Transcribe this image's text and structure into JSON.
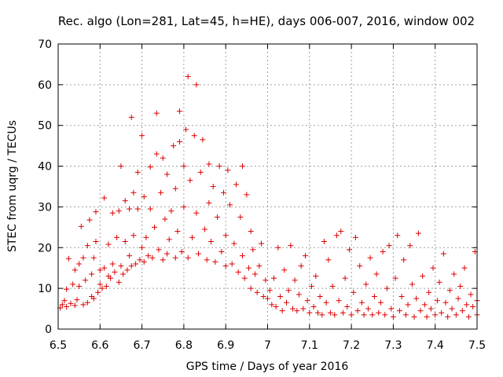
{
  "chart_data": {
    "type": "scatter",
    "title": "Rec. algo (Lon=281, Lat=45, h=HE), days 006-007, 2016, window 002",
    "xlabel": "GPS time / Days of year 2016",
    "ylabel": "STEC from uqrg / TECUs",
    "xlim": [
      6.5,
      7.5
    ],
    "ylim": [
      0,
      70
    ],
    "xticks": [
      6.5,
      6.6,
      6.7,
      6.8,
      6.9,
      7.0,
      7.1,
      7.2,
      7.3,
      7.4,
      7.5
    ],
    "xtick_labels": [
      "6.5",
      "6.6",
      "6.7",
      "6.8",
      "6.9",
      "7",
      "7.1",
      "7.2",
      "7.3",
      "7.4",
      "7.5"
    ],
    "yticks": [
      0,
      10,
      20,
      30,
      40,
      50,
      60,
      70
    ],
    "ytick_labels": [
      "0",
      "10",
      "20",
      "30",
      "40",
      "50",
      "60",
      "70"
    ],
    "grid": true,
    "marker": "+",
    "color": "#dd0000",
    "series": [
      {
        "name": "STEC",
        "points": [
          [
            6.505,
            5.2
          ],
          [
            6.51,
            6.0
          ],
          [
            6.515,
            7.0
          ],
          [
            6.52,
            5.5
          ],
          [
            6.52,
            9.8
          ],
          [
            6.525,
            17.3
          ],
          [
            6.53,
            6.3
          ],
          [
            6.535,
            11.0
          ],
          [
            6.54,
            5.8
          ],
          [
            6.54,
            14.5
          ],
          [
            6.545,
            7.2
          ],
          [
            6.55,
            10.5
          ],
          [
            6.55,
            16.0
          ],
          [
            6.555,
            25.2
          ],
          [
            6.56,
            6.0
          ],
          [
            6.56,
            17.5
          ],
          [
            6.565,
            12.0
          ],
          [
            6.57,
            6.5
          ],
          [
            6.57,
            20.5
          ],
          [
            6.575,
            26.8
          ],
          [
            6.58,
            8.0
          ],
          [
            6.58,
            13.5
          ],
          [
            6.585,
            7.5
          ],
          [
            6.585,
            17.5
          ],
          [
            6.59,
            21.5
          ],
          [
            6.59,
            28.8
          ],
          [
            6.595,
            9.0
          ],
          [
            6.6,
            11.0
          ],
          [
            6.6,
            14.5
          ],
          [
            6.605,
            10.0
          ],
          [
            6.61,
            15.0
          ],
          [
            6.61,
            32.2
          ],
          [
            6.615,
            10.5
          ],
          [
            6.62,
            13.0
          ],
          [
            6.62,
            20.8
          ],
          [
            6.625,
            12.5
          ],
          [
            6.63,
            16.0
          ],
          [
            6.63,
            28.5
          ],
          [
            6.635,
            14.0
          ],
          [
            6.64,
            22.5
          ],
          [
            6.645,
            11.5
          ],
          [
            6.645,
            29.0
          ],
          [
            6.65,
            15.5
          ],
          [
            6.65,
            40.0
          ],
          [
            6.655,
            13.5
          ],
          [
            6.66,
            21.5
          ],
          [
            6.66,
            31.5
          ],
          [
            6.665,
            14.5
          ],
          [
            6.67,
            18.0
          ],
          [
            6.67,
            29.5
          ],
          [
            6.675,
            52.0
          ],
          [
            6.675,
            15.5
          ],
          [
            6.68,
            23.0
          ],
          [
            6.68,
            33.5
          ],
          [
            6.685,
            16.0
          ],
          [
            6.69,
            29.5
          ],
          [
            6.69,
            38.5
          ],
          [
            6.695,
            17.0
          ],
          [
            6.7,
            20.0
          ],
          [
            6.7,
            47.5
          ],
          [
            6.705,
            16.5
          ],
          [
            6.705,
            32.5
          ],
          [
            6.71,
            22.5
          ],
          [
            6.715,
            18.0
          ],
          [
            6.72,
            29.5
          ],
          [
            6.72,
            39.8
          ],
          [
            6.725,
            17.5
          ],
          [
            6.73,
            25.0
          ],
          [
            6.735,
            53.0
          ],
          [
            6.735,
            43.0
          ],
          [
            6.74,
            19.5
          ],
          [
            6.745,
            33.5
          ],
          [
            6.75,
            17.0
          ],
          [
            6.75,
            42.0
          ],
          [
            6.755,
            27.0
          ],
          [
            6.76,
            18.5
          ],
          [
            6.76,
            38.0
          ],
          [
            6.765,
            22.0
          ],
          [
            6.77,
            29.0
          ],
          [
            6.775,
            45.0
          ],
          [
            6.78,
            17.5
          ],
          [
            6.78,
            34.5
          ],
          [
            6.785,
            24.0
          ],
          [
            6.79,
            46.0
          ],
          [
            6.79,
            53.5
          ],
          [
            6.795,
            19.0
          ],
          [
            6.8,
            40.0
          ],
          [
            6.8,
            30.0
          ],
          [
            6.805,
            49.0
          ],
          [
            6.81,
            62.0
          ],
          [
            6.81,
            17.5
          ],
          [
            6.815,
            36.5
          ],
          [
            6.82,
            22.5
          ],
          [
            6.825,
            47.5
          ],
          [
            6.83,
            28.5
          ],
          [
            6.83,
            60.0
          ],
          [
            6.835,
            18.5
          ],
          [
            6.84,
            38.5
          ],
          [
            6.845,
            46.5
          ],
          [
            6.85,
            24.5
          ],
          [
            6.855,
            17.0
          ],
          [
            6.86,
            31.0
          ],
          [
            6.86,
            40.5
          ],
          [
            6.865,
            21.5
          ],
          [
            6.87,
            35.0
          ],
          [
            6.875,
            16.5
          ],
          [
            6.88,
            27.5
          ],
          [
            6.885,
            40.0
          ],
          [
            6.89,
            19.0
          ],
          [
            6.895,
            33.5
          ],
          [
            6.9,
            15.5
          ],
          [
            6.9,
            23.0
          ],
          [
            6.905,
            39.0
          ],
          [
            6.91,
            30.5
          ],
          [
            6.915,
            16.0
          ],
          [
            6.92,
            21.0
          ],
          [
            6.925,
            35.5
          ],
          [
            6.93,
            14.0
          ],
          [
            6.935,
            27.5
          ],
          [
            6.94,
            40.0
          ],
          [
            6.94,
            18.0
          ],
          [
            6.945,
            12.5
          ],
          [
            6.95,
            33.0
          ],
          [
            6.955,
            15.0
          ],
          [
            6.96,
            24.0
          ],
          [
            6.96,
            10.0
          ],
          [
            6.965,
            19.5
          ],
          [
            6.97,
            13.5
          ],
          [
            6.975,
            9.0
          ],
          [
            6.98,
            15.5
          ],
          [
            6.985,
            21.0
          ],
          [
            6.99,
            8.0
          ],
          [
            6.995,
            12.0
          ],
          [
            7.0,
            7.5
          ],
          [
            7.005,
            9.5
          ],
          [
            7.01,
            6.0
          ],
          [
            7.015,
            12.5
          ],
          [
            7.02,
            5.5
          ],
          [
            7.025,
            20.0
          ],
          [
            7.03,
            8.0
          ],
          [
            7.035,
            4.5
          ],
          [
            7.04,
            14.5
          ],
          [
            7.045,
            6.5
          ],
          [
            7.05,
            9.5
          ],
          [
            7.055,
            20.5
          ],
          [
            7.06,
            5.0
          ],
          [
            7.065,
            12.0
          ],
          [
            7.07,
            4.5
          ],
          [
            7.075,
            8.5
          ],
          [
            7.08,
            15.5
          ],
          [
            7.085,
            5.0
          ],
          [
            7.09,
            18.0
          ],
          [
            7.095,
            7.0
          ],
          [
            7.1,
            4.0
          ],
          [
            7.105,
            10.5
          ],
          [
            7.11,
            5.5
          ],
          [
            7.115,
            13.0
          ],
          [
            7.12,
            4.0
          ],
          [
            7.125,
            8.0
          ],
          [
            7.13,
            3.5
          ],
          [
            7.135,
            21.5
          ],
          [
            7.14,
            6.5
          ],
          [
            7.145,
            17.0
          ],
          [
            7.15,
            4.0
          ],
          [
            7.155,
            10.5
          ],
          [
            7.16,
            3.5
          ],
          [
            7.165,
            23.0
          ],
          [
            7.17,
            7.0
          ],
          [
            7.175,
            24.0
          ],
          [
            7.18,
            4.0
          ],
          [
            7.185,
            12.5
          ],
          [
            7.19,
            5.5
          ],
          [
            7.195,
            19.5
          ],
          [
            7.2,
            3.5
          ],
          [
            7.205,
            9.0
          ],
          [
            7.21,
            22.5
          ],
          [
            7.215,
            4.5
          ],
          [
            7.22,
            15.5
          ],
          [
            7.225,
            6.5
          ],
          [
            7.23,
            3.5
          ],
          [
            7.235,
            11.0
          ],
          [
            7.24,
            5.0
          ],
          [
            7.245,
            17.5
          ],
          [
            7.25,
            3.5
          ],
          [
            7.255,
            8.0
          ],
          [
            7.26,
            13.5
          ],
          [
            7.265,
            4.0
          ],
          [
            7.27,
            6.5
          ],
          [
            7.275,
            19.0
          ],
          [
            7.28,
            3.5
          ],
          [
            7.285,
            10.0
          ],
          [
            7.29,
            20.5
          ],
          [
            7.295,
            5.0
          ],
          [
            7.3,
            3.0
          ],
          [
            7.305,
            12.5
          ],
          [
            7.31,
            23.0
          ],
          [
            7.315,
            4.5
          ],
          [
            7.32,
            8.0
          ],
          [
            7.325,
            17.0
          ],
          [
            7.33,
            3.5
          ],
          [
            7.335,
            6.0
          ],
          [
            7.34,
            20.5
          ],
          [
            7.345,
            11.0
          ],
          [
            7.35,
            3.0
          ],
          [
            7.355,
            7.5
          ],
          [
            7.36,
            23.5
          ],
          [
            7.365,
            4.5
          ],
          [
            7.37,
            13.0
          ],
          [
            7.375,
            6.0
          ],
          [
            7.38,
            3.0
          ],
          [
            7.385,
            9.0
          ],
          [
            7.39,
            5.0
          ],
          [
            7.395,
            15.0
          ],
          [
            7.4,
            3.5
          ],
          [
            7.405,
            7.0
          ],
          [
            7.41,
            11.5
          ],
          [
            7.415,
            4.0
          ],
          [
            7.42,
            18.5
          ],
          [
            7.425,
            6.5
          ],
          [
            7.43,
            3.0
          ],
          [
            7.435,
            9.5
          ],
          [
            7.44,
            5.0
          ],
          [
            7.445,
            13.5
          ],
          [
            7.45,
            3.5
          ],
          [
            7.455,
            7.5
          ],
          [
            7.46,
            10.5
          ],
          [
            7.465,
            4.5
          ],
          [
            7.47,
            15.0
          ],
          [
            7.475,
            6.0
          ],
          [
            7.48,
            3.0
          ],
          [
            7.485,
            8.5
          ],
          [
            7.49,
            5.5
          ],
          [
            7.495,
            19.0
          ],
          [
            7.5,
            3.5
          ],
          [
            7.5,
            7.0
          ]
        ]
      }
    ]
  }
}
